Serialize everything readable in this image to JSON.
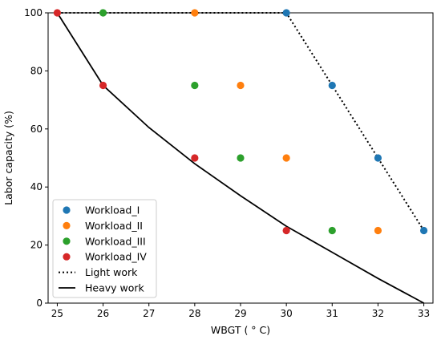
{
  "chart_data": {
    "type": "scatter",
    "xlabel": "WBGT ( ° C)",
    "ylabel": "Labor capacity (%)",
    "xlim": [
      24.8,
      33.2
    ],
    "ylim": [
      0,
      100
    ],
    "xticks": [
      "25",
      "26",
      "27",
      "28",
      "29",
      "30",
      "31",
      "32",
      "33"
    ],
    "yticks": [
      "0",
      "20",
      "40",
      "60",
      "80",
      "100"
    ],
    "grid": false,
    "legend_position": "lower-left",
    "series": [
      {
        "name": "Workload_I",
        "kind": "points",
        "color": "#1f77b4",
        "points": [
          [
            30,
            100
          ],
          [
            31,
            75
          ],
          [
            32,
            50
          ],
          [
            33,
            25
          ]
        ]
      },
      {
        "name": "Workload_II",
        "kind": "points",
        "color": "#ff7f0e",
        "points": [
          [
            28,
            100
          ],
          [
            29,
            75
          ],
          [
            30,
            50
          ],
          [
            32,
            25
          ]
        ]
      },
      {
        "name": "Workload_III",
        "kind": "points",
        "color": "#2ca02c",
        "points": [
          [
            26,
            100
          ],
          [
            28,
            75
          ],
          [
            29,
            50
          ],
          [
            31,
            25
          ]
        ]
      },
      {
        "name": "Workload_IV",
        "kind": "points",
        "color": "#d62728",
        "points": [
          [
            25,
            100
          ],
          [
            26,
            75
          ],
          [
            28,
            50
          ],
          [
            30,
            25
          ]
        ]
      },
      {
        "name": "Light work",
        "kind": "line",
        "style": "dotted",
        "color": "#000000",
        "points": [
          [
            25,
            100
          ],
          [
            30,
            100
          ],
          [
            31,
            75
          ],
          [
            32,
            50
          ],
          [
            33,
            25
          ]
        ]
      },
      {
        "name": "Heavy work",
        "kind": "line",
        "style": "solid",
        "color": "#000000",
        "points": [
          [
            25,
            100
          ],
          [
            26,
            75
          ],
          [
            27,
            60.5
          ],
          [
            28,
            48
          ],
          [
            29,
            37
          ],
          [
            30,
            26.5
          ],
          [
            31,
            17.5
          ],
          [
            32,
            8.5
          ],
          [
            33,
            0
          ]
        ]
      }
    ]
  }
}
